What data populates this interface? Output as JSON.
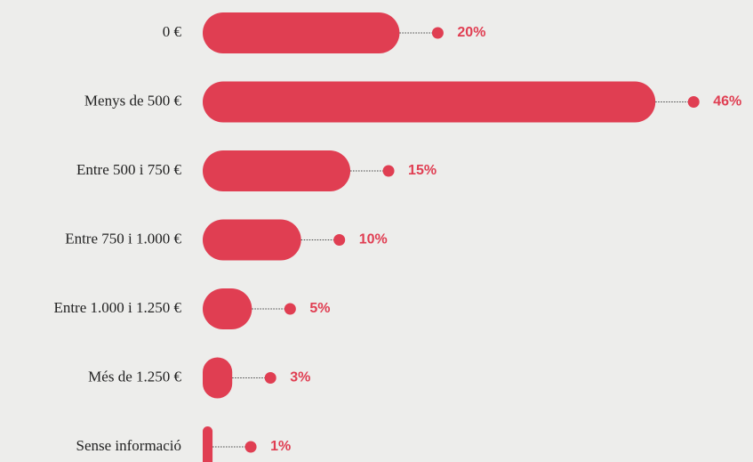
{
  "chart_data": {
    "type": "bar",
    "orientation": "horizontal",
    "categories": [
      "0 €",
      "Menys de 500 €",
      "Entre 500 i 750 €",
      "Entre 750 i 1.000 €",
      "Entre 1.000 i 1.250 €",
      "Més de 1.250 €",
      "Sense informació"
    ],
    "values": [
      20,
      46,
      15,
      10,
      5,
      3,
      1
    ],
    "value_labels": [
      "20%",
      "46%",
      "15%",
      "10%",
      "5%",
      "3%",
      "1%"
    ],
    "color": "#e03e52"
  }
}
